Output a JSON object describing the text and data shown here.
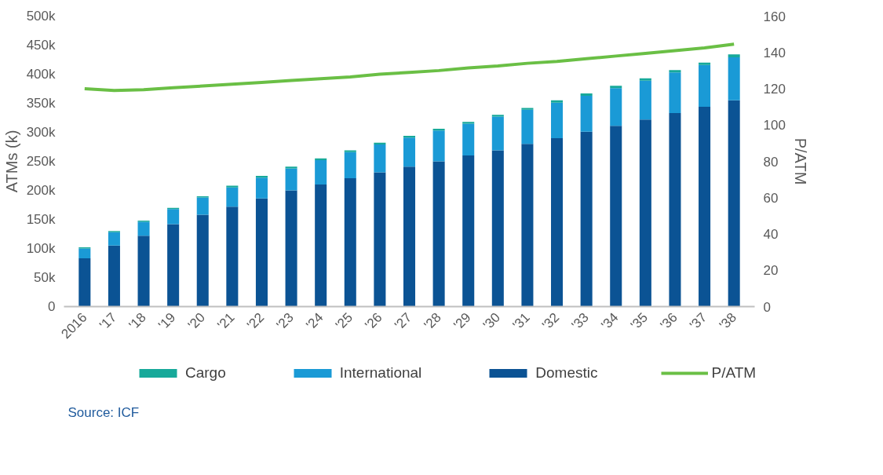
{
  "chart_data": {
    "type": "bar",
    "stacked": true,
    "ylabel": "ATMs (k)",
    "y2label": "P/ATM",
    "categories": [
      "2016",
      "'17",
      "'18",
      "'19",
      "'20",
      "'21",
      "'22",
      "'23",
      "'24",
      "'25",
      "'26",
      "'27",
      "'28",
      "'29",
      "'30",
      "'31",
      "'32",
      "'33",
      "'34",
      "'35",
      "'36",
      "'37",
      "'38"
    ],
    "series": [
      {
        "name": "Domestic",
        "color": "#0b5394",
        "values": [
          83,
          105,
          122,
          142,
          158,
          172,
          186,
          200,
          210,
          221,
          231,
          241,
          250,
          260,
          269,
          280,
          290,
          301,
          311,
          322,
          333,
          344,
          355
        ]
      },
      {
        "name": "International",
        "color": "#1a9ad6",
        "values": [
          17,
          23,
          24,
          26,
          30,
          33,
          36,
          38,
          42,
          45,
          48,
          50,
          53,
          55,
          58,
          59,
          61,
          62,
          65,
          67,
          70,
          72,
          74
        ]
      },
      {
        "name": "Cargo",
        "color": "#17a99a",
        "values": [
          2,
          2,
          2,
          2,
          2,
          3,
          3,
          3,
          3,
          3,
          3,
          3,
          3,
          3,
          3,
          3,
          4,
          4,
          4,
          4,
          4,
          4,
          5
        ]
      },
      {
        "name": "P/ATM",
        "type": "line",
        "axis": "y2",
        "color": "#6abf45",
        "values": [
          120,
          119,
          119.5,
          120.5,
          121.5,
          122.5,
          123.5,
          124.5,
          125.5,
          126.5,
          128,
          129,
          130,
          131.5,
          132.5,
          134,
          135,
          136.5,
          138,
          139.5,
          141,
          142.5,
          144.5
        ]
      }
    ],
    "ylim": [
      0,
      500
    ],
    "yticks": [
      0,
      {
        "value": 50,
        "label": "50k"
      },
      {
        "value": 100,
        "label": "100k"
      },
      {
        "value": 150,
        "label": "150k"
      },
      {
        "value": 200,
        "label": "200k"
      },
      {
        "value": 250,
        "label": "250k"
      },
      {
        "value": 300,
        "label": "300k"
      },
      {
        "value": 350,
        "label": "350k"
      },
      {
        "value": 400,
        "label": "400k"
      },
      {
        "value": 450,
        "label": "450k"
      },
      {
        "value": 500,
        "label": "500k"
      }
    ],
    "y2lim": [
      0,
      160
    ],
    "y2ticks": [
      0,
      20,
      40,
      60,
      80,
      100,
      120,
      140,
      160
    ],
    "grid": false,
    "legend": "bottom",
    "annotations": [
      "Source: ICF"
    ]
  }
}
